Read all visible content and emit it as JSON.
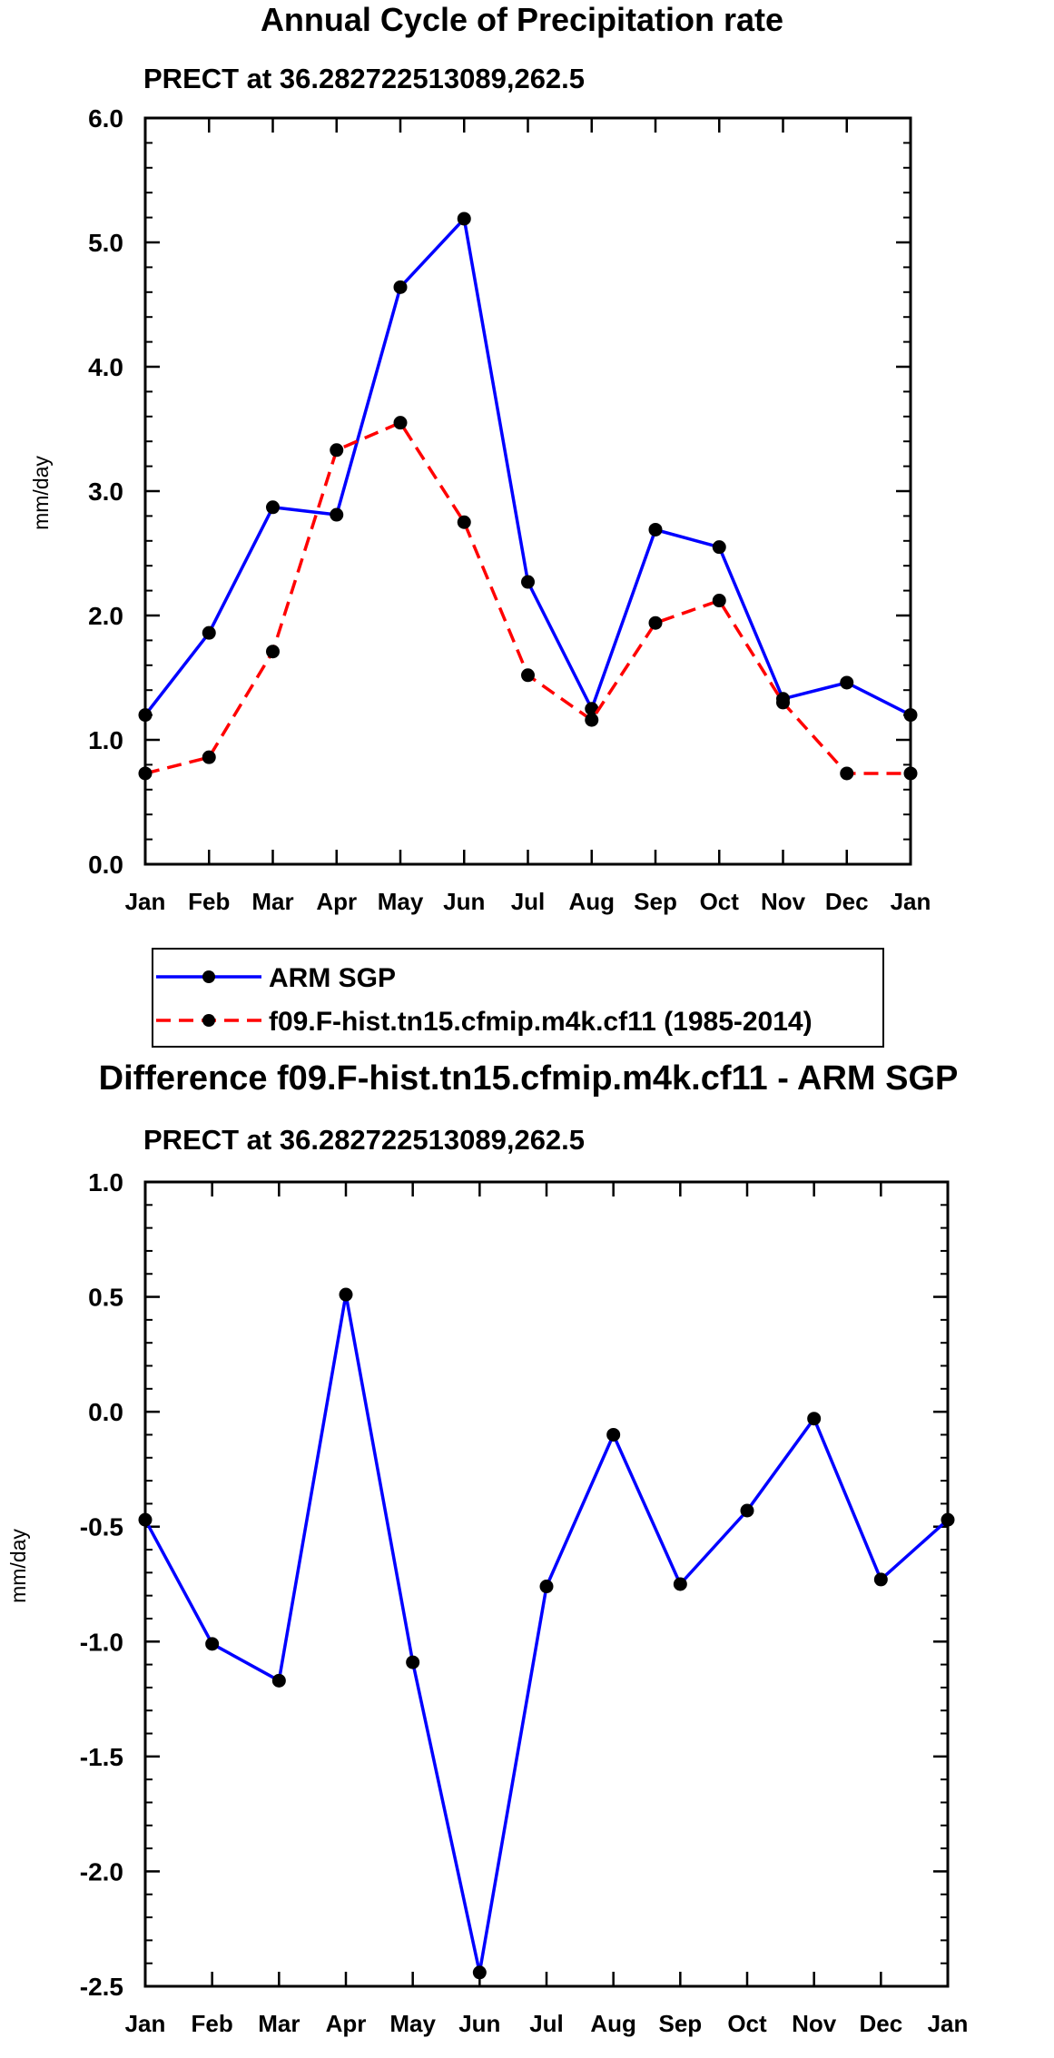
{
  "chart_data": [
    {
      "type": "line",
      "title": "Annual Cycle of Precipitation rate",
      "subtitle": "PRECT at 36.282722513089,262.5",
      "xlabel": "",
      "ylabel": "mm/day",
      "categories": [
        "Jan",
        "Feb",
        "Mar",
        "Apr",
        "May",
        "Jun",
        "Jul",
        "Aug",
        "Sep",
        "Oct",
        "Nov",
        "Dec",
        "Jan"
      ],
      "ylim": [
        0.0,
        6.0
      ],
      "yticks": [
        "0.0",
        "1.0",
        "2.0",
        "3.0",
        "4.0",
        "5.0",
        "6.0"
      ],
      "grid": false,
      "legend_position": "below",
      "series": [
        {
          "name": "ARM SGP",
          "color": "#0000ff",
          "dash": "solid",
          "values": [
            1.2,
            1.86,
            2.87,
            2.81,
            4.64,
            5.19,
            2.27,
            1.25,
            2.69,
            2.55,
            1.33,
            1.46,
            1.2
          ]
        },
        {
          "name": "f09.F-hist.tn15.cfmip.m4k.cf11 (1985-2014)",
          "color": "#ff0000",
          "dash": "dashed",
          "values": [
            0.73,
            0.86,
            1.71,
            3.33,
            3.55,
            2.75,
            1.52,
            1.16,
            1.94,
            2.12,
            1.3,
            0.73,
            0.73
          ]
        }
      ]
    },
    {
      "type": "line",
      "title": "Difference f09.F-hist.tn15.cfmip.m4k.cf11 - ARM SGP",
      "subtitle": "PRECT at 36.282722513089,262.5",
      "xlabel": "",
      "ylabel": "mm/day",
      "categories": [
        "Jan",
        "Feb",
        "Mar",
        "Apr",
        "May",
        "Jun",
        "Jul",
        "Aug",
        "Sep",
        "Oct",
        "Nov",
        "Dec",
        "Jan"
      ],
      "ylim": [
        -2.5,
        1.0
      ],
      "yticks": [
        "-2.5",
        "-2.0",
        "-1.5",
        "-1.0",
        "-0.5",
        "0.0",
        "0.5",
        "1.0"
      ],
      "grid": false,
      "series": [
        {
          "name": "Difference",
          "color": "#0000ff",
          "dash": "solid",
          "values": [
            -0.47,
            -1.01,
            -1.17,
            0.51,
            -1.09,
            -2.44,
            -0.76,
            -0.1,
            -0.75,
            -0.43,
            -0.03,
            -0.73,
            -0.47
          ]
        }
      ]
    }
  ]
}
